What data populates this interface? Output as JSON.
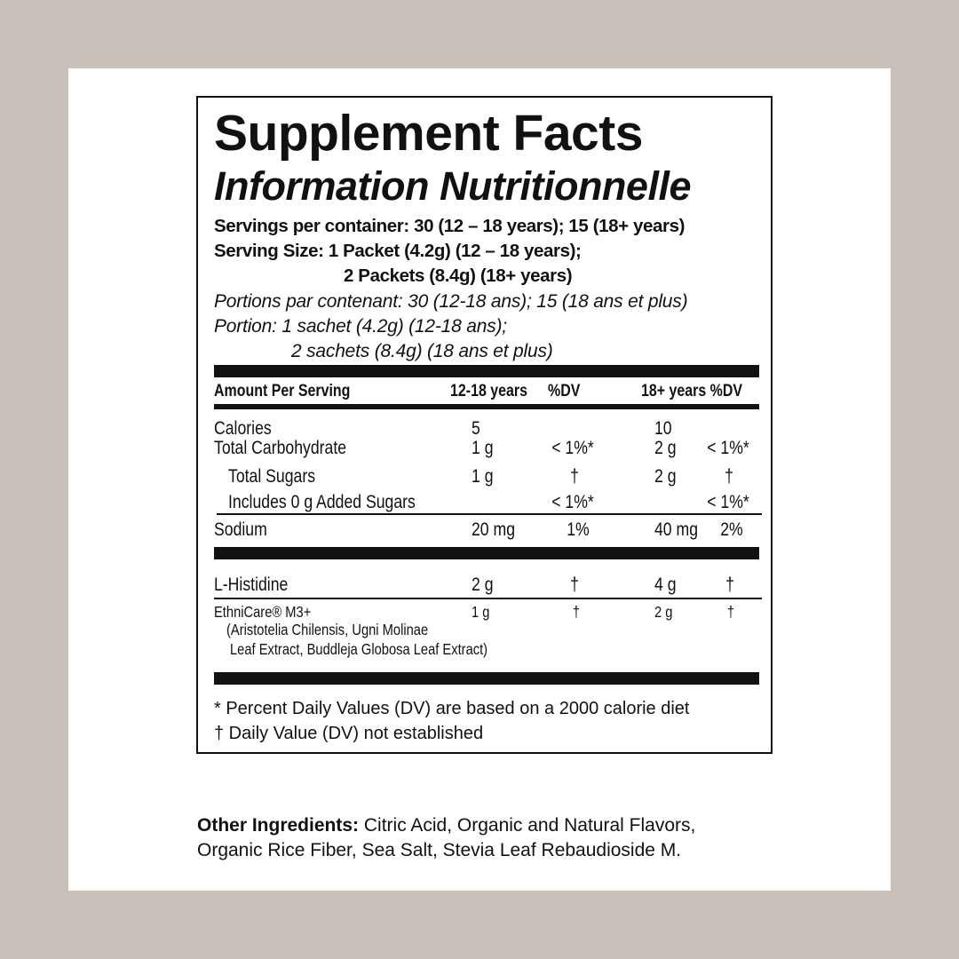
{
  "label": {
    "title": "Supplement Facts",
    "subtitle": "Information Nutritionnelle",
    "servings_en": "Servings per container: 30 (12 – 18 years); 15 (18+ years)",
    "serving_size_en_1": "Serving Size: 1 Packet (4.2g) (12 – 18 years);",
    "serving_size_en_2": "2 Packets (8.4g) (18+ years)",
    "servings_fr": "Portions par contenant: 30 (12-18 ans); 15 (18 ans et plus)",
    "serving_size_fr_1": "Portion: 1 sachet (4.2g) (12-18 ans);",
    "serving_size_fr_2": "2 sachets (8.4g) (18 ans et plus)",
    "header": {
      "amount": "Amount Per Serving",
      "col1": "12-18 years",
      "dv1": "%DV",
      "col2": "18+ years %DV"
    },
    "rows": [
      {
        "name": "Calories",
        "a1": "5",
        "d1": "",
        "a2": "10",
        "d2": ""
      },
      {
        "name": "Total Carbohydrate",
        "a1": "1 g",
        "d1": "< 1%*",
        "a2": "2 g",
        "d2": "< 1%*"
      },
      {
        "name": "Total Sugars",
        "a1": "1 g",
        "d1": "†",
        "a2": "2 g",
        "d2": "†"
      },
      {
        "name": "Includes 0 g Added Sugars",
        "a1": "",
        "d1": "< 1%*",
        "a2": "",
        "d2": "< 1%*"
      },
      {
        "name": "Sodium",
        "a1": "20 mg",
        "d1": "1%",
        "a2": "40 mg",
        "d2": "2%"
      },
      {
        "name": "L-Histidine",
        "a1": "2 g",
        "d1": "†",
        "a2": "4 g",
        "d2": "†"
      },
      {
        "name": "EthniCare® M3+",
        "a1": "1 g",
        "d1": "†",
        "a2": "2 g",
        "d2": "†"
      }
    ],
    "ethnicare_detail_1": "(Aristotelia Chilensis, Ugni Molinae",
    "ethnicare_detail_2": "Leaf Extract, Buddleja Globosa Leaf Extract)",
    "footnote_1": "* Percent Daily Values (DV) are based on a 2000 calorie diet",
    "footnote_2": "† Daily Value (DV) not established"
  },
  "other_ingredients": {
    "label": "Other Ingredients:",
    "text_1": " Citric Acid, Organic and Natural Flavors,",
    "text_2": "Organic Rice Fiber, Sea Salt, Stevia Leaf Rebaudioside M."
  },
  "colors": {
    "background": "#c8c0b9",
    "panel": "#ffffff",
    "ink": "#111111"
  }
}
